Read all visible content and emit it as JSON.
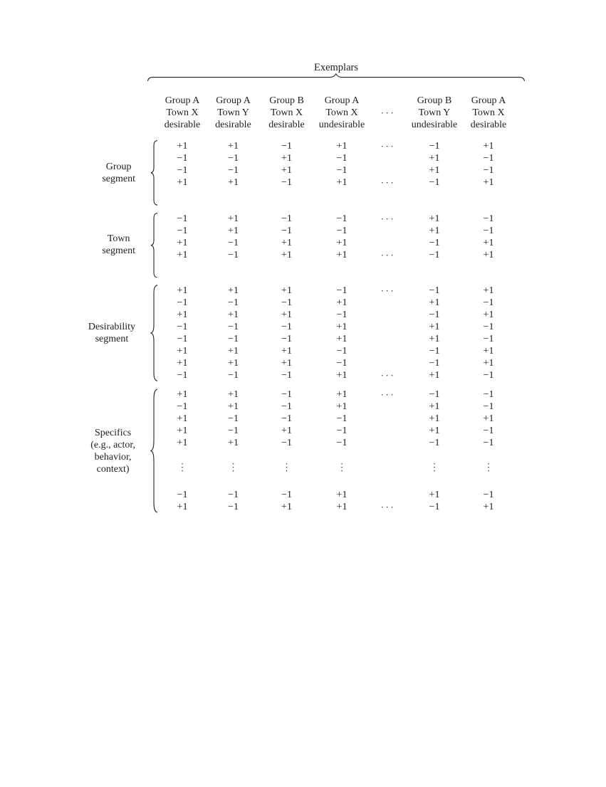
{
  "title": "Exemplars",
  "columns": [
    {
      "type": "exemplar",
      "lines": [
        "Group A",
        "Town X",
        "desirable"
      ]
    },
    {
      "type": "exemplar",
      "lines": [
        "Group A",
        "Town Y",
        "desirable"
      ]
    },
    {
      "type": "exemplar",
      "lines": [
        "Group B",
        "Town X",
        "desirable"
      ]
    },
    {
      "type": "exemplar",
      "lines": [
        "Group A",
        "Town X",
        "undesirable"
      ]
    },
    {
      "type": "cdots",
      "lines": [
        "",
        "···",
        ""
      ]
    },
    {
      "type": "exemplar",
      "lines": [
        "Group B",
        "Town Y",
        "undesirable"
      ]
    },
    {
      "type": "exemplar",
      "lines": [
        "Group A",
        "Town X",
        "desirable"
      ]
    }
  ],
  "segments": [
    {
      "label_lines": [
        "Group",
        "segment"
      ],
      "rows": [
        {
          "cells": [
            "+1",
            "+1",
            "−1",
            "+1",
            "···",
            "−1",
            "+1"
          ]
        },
        {
          "cells": [
            "−1",
            "−1",
            "+1",
            "−1",
            "",
            "+1",
            "−1"
          ]
        },
        {
          "cells": [
            "−1",
            "−1",
            "+1",
            "−1",
            "",
            "+1",
            "−1"
          ]
        },
        {
          "cells": [
            "+1",
            "+1",
            "−1",
            "+1",
            "···",
            "−1",
            "+1"
          ]
        }
      ]
    },
    {
      "label_lines": [
        "Town",
        "segment"
      ],
      "rows": [
        {
          "cells": [
            "−1",
            "+1",
            "−1",
            "−1",
            "···",
            "+1",
            "−1"
          ]
        },
        {
          "cells": [
            "−1",
            "+1",
            "−1",
            "−1",
            "",
            "+1",
            "−1"
          ]
        },
        {
          "cells": [
            "+1",
            "−1",
            "+1",
            "+1",
            "",
            "−1",
            "+1"
          ]
        },
        {
          "cells": [
            "+1",
            "−1",
            "+1",
            "+1",
            "···",
            "−1",
            "+1"
          ]
        }
      ]
    },
    {
      "label_lines": [
        "Desirability",
        "segment"
      ],
      "rows": [
        {
          "cells": [
            "+1",
            "+1",
            "+1",
            "−1",
            "···",
            "−1",
            "+1"
          ]
        },
        {
          "cells": [
            "−1",
            "−1",
            "−1",
            "+1",
            "",
            "+1",
            "−1"
          ]
        },
        {
          "cells": [
            "+1",
            "+1",
            "+1",
            "−1",
            "",
            "−1",
            "+1"
          ]
        },
        {
          "cells": [
            "−1",
            "−1",
            "−1",
            "+1",
            "",
            "+1",
            "−1"
          ]
        },
        {
          "cells": [
            "−1",
            "−1",
            "−1",
            "+1",
            "",
            "+1",
            "−1"
          ]
        },
        {
          "cells": [
            "+1",
            "+1",
            "+1",
            "−1",
            "",
            "−1",
            "+1"
          ]
        },
        {
          "cells": [
            "+1",
            "+1",
            "+1",
            "−1",
            "",
            "−1",
            "+1"
          ]
        },
        {
          "cells": [
            "−1",
            "−1",
            "−1",
            "+1",
            "···",
            "+1",
            "−1"
          ]
        }
      ]
    },
    {
      "label_lines": [
        "Specifics",
        "(e.g., actor,",
        "behavior,",
        "context)"
      ],
      "rows": [
        {
          "cells": [
            "+1",
            "+1",
            "−1",
            "+1",
            "···",
            "−1",
            "−1"
          ]
        },
        {
          "cells": [
            "−1",
            "+1",
            "−1",
            "+1",
            "",
            "+1",
            "−1"
          ]
        },
        {
          "cells": [
            "+1",
            "−1",
            "−1",
            "−1",
            "",
            "+1",
            "+1"
          ]
        },
        {
          "cells": [
            "+1",
            "−1",
            "+1",
            "−1",
            "",
            "+1",
            "−1"
          ]
        },
        {
          "cells": [
            "+1",
            "+1",
            "−1",
            "−1",
            "",
            "−1",
            "−1"
          ]
        },
        {
          "type": "vdots",
          "cells": [
            "⋮",
            "⋮",
            "⋮",
            "⋮",
            "",
            "⋮",
            "⋮"
          ]
        },
        {
          "cells": [
            "−1",
            "−1",
            "−1",
            "+1",
            "",
            "+1",
            "−1"
          ]
        },
        {
          "cells": [
            "+1",
            "−1",
            "+1",
            "+1",
            "···",
            "−1",
            "+1"
          ]
        }
      ]
    }
  ],
  "colors": {
    "text": "#222222",
    "background": "#ffffff"
  }
}
